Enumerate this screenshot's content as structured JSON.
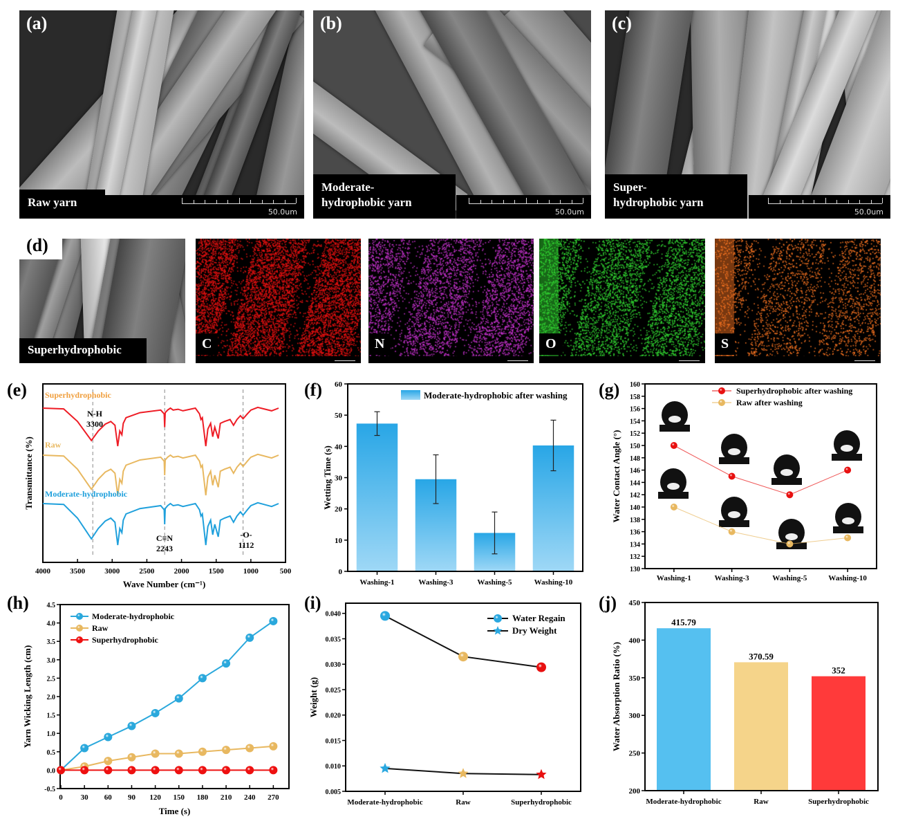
{
  "figure": {
    "sem_panels": [
      {
        "letter": "(a)",
        "caption_lines": [
          "Raw yarn"
        ],
        "scale": "50.0um"
      },
      {
        "letter": "(b)",
        "caption_lines": [
          "Moderate-",
          "hydrophobic yarn"
        ],
        "scale": "50.0um"
      },
      {
        "letter": "(c)",
        "caption_lines": [
          "Super-",
          "hydrophobic yarn"
        ],
        "scale": "50.0um"
      }
    ],
    "eds": {
      "letter": "(d)",
      "sem_caption": "Superhydrophobic",
      "maps": [
        {
          "element": "C",
          "color": "#e01010"
        },
        {
          "element": "N",
          "color": "#c030c8"
        },
        {
          "element": "O",
          "color": "#30d030"
        },
        {
          "element": "S",
          "color": "#f07020"
        }
      ]
    }
  },
  "chart_data": [
    {
      "panel": "(e)",
      "type": "line",
      "title": "",
      "xlabel": "Wave Number (cm⁻¹)",
      "ylabel": "Transmittance (%)",
      "xlim": [
        4000,
        500
      ],
      "xticks": [
        4000,
        3500,
        3000,
        2500,
        2000,
        1500,
        1000,
        500
      ],
      "series": [
        {
          "name": "Superhydrophobic",
          "color": "#ee1c25"
        },
        {
          "name": "Raw",
          "color": "#e8b860"
        },
        {
          "name": "Moderate-hydrophobic",
          "color": "#1fa0dc"
        }
      ],
      "annotations": [
        {
          "label": "N-H",
          "value": "3300"
        },
        {
          "label": "C≡N",
          "value": "2243"
        },
        {
          "label": "-O-",
          "value": "1112"
        }
      ],
      "reference_lines": [
        3280,
        2243,
        1112
      ]
    },
    {
      "panel": "(f)",
      "type": "bar",
      "title": "",
      "xlabel": "",
      "ylabel": "Wetting Time (s)",
      "ylim": [
        0,
        60
      ],
      "yticks": [
        0,
        10,
        20,
        30,
        40,
        50,
        60
      ],
      "categories": [
        "Washing-1",
        "Washing-3",
        "Washing-5",
        "Washing-10"
      ],
      "legend": "Moderate-hydrophobic after washing",
      "legend_position": "top-right",
      "values": [
        47.3,
        29.5,
        12.3,
        40.3
      ],
      "errors": [
        3.8,
        7.8,
        6.7,
        8.1
      ],
      "color": "#2aa8e8"
    },
    {
      "panel": "(g)",
      "type": "line",
      "title": "",
      "xlabel": "",
      "ylabel": "Water Contact Angle (°)",
      "ylim": [
        130,
        160
      ],
      "yticks": [
        130,
        132,
        134,
        136,
        138,
        140,
        142,
        144,
        146,
        148,
        150,
        152,
        154,
        156,
        158,
        160
      ],
      "categories": [
        "Washing-1",
        "Washing-3",
        "Washing-5",
        "Washing-10"
      ],
      "legend_position": "top-right",
      "series": [
        {
          "name": "Superhydrophobic after washing",
          "values": [
            150,
            145,
            142,
            146
          ],
          "color": "#e81010"
        },
        {
          "name": "Raw after washing",
          "values": [
            140,
            136,
            134,
            135
          ],
          "color": "#e8b860"
        }
      ]
    },
    {
      "panel": "(h)",
      "type": "line",
      "title": "",
      "xlabel": "Time (s)",
      "ylabel": "Yarn Wicking Length (cm)",
      "xlim": [
        0,
        280
      ],
      "ylim": [
        -0.5,
        4.5
      ],
      "xticks": [
        0,
        30,
        60,
        90,
        120,
        150,
        180,
        210,
        240,
        270
      ],
      "yticks": [
        -0.5,
        0.0,
        0.5,
        1.0,
        1.5,
        2.0,
        2.5,
        3.0,
        3.5,
        4.0,
        4.5
      ],
      "x": [
        0,
        30,
        60,
        90,
        120,
        150,
        180,
        210,
        240,
        270
      ],
      "legend_position": "top-left",
      "series": [
        {
          "name": "Moderate-hydrophobic",
          "values": [
            0,
            0.6,
            0.9,
            1.2,
            1.55,
            1.95,
            2.5,
            2.9,
            3.6,
            4.05
          ],
          "color": "#2aa8dc"
        },
        {
          "name": "Raw",
          "values": [
            0,
            0.1,
            0.25,
            0.35,
            0.45,
            0.45,
            0.5,
            0.55,
            0.6,
            0.65
          ],
          "color": "#e8b860"
        },
        {
          "name": "Superhydrophobic",
          "values": [
            0,
            0,
            0,
            0,
            0,
            0,
            0,
            0,
            0,
            0
          ],
          "color": "#ee1010"
        }
      ]
    },
    {
      "panel": "(i)",
      "type": "line",
      "title": "",
      "xlabel": "",
      "ylabel": "Weight (g)",
      "ylim": [
        0.005,
        0.042
      ],
      "yticks": [
        "0.005",
        "0.010",
        "0.015",
        "0.020",
        "0.025",
        "0.030",
        "0.035",
        "0.040"
      ],
      "categories": [
        "Moderate-hydrophobic",
        "Raw",
        "Superhydrophobic"
      ],
      "point_colors": [
        "#2aa8e0",
        "#e8b860",
        "#e81010"
      ],
      "legend_position": "top-right",
      "series": [
        {
          "name": "Water Regain",
          "marker": "circle",
          "values": [
            0.0395,
            0.0315,
            0.0294
          ]
        },
        {
          "name": "Dry Weight",
          "marker": "star",
          "values": [
            0.0095,
            0.0085,
            0.0083
          ]
        }
      ]
    },
    {
      "panel": "(j)",
      "type": "bar",
      "title": "",
      "xlabel": "",
      "ylabel": "Water Absorption Ratio (%)",
      "ylim": [
        200,
        450
      ],
      "yticks": [
        200,
        250,
        300,
        350,
        400,
        450
      ],
      "categories": [
        "Moderate-hydrophobic",
        "Raw",
        "Superhydrophobic"
      ],
      "values": [
        415.79,
        370.59,
        352
      ],
      "value_labels": [
        "415.79",
        "370.59",
        "352"
      ],
      "colors": [
        "#55c0f0",
        "#f5d48a",
        "#ff3a3a"
      ]
    }
  ]
}
